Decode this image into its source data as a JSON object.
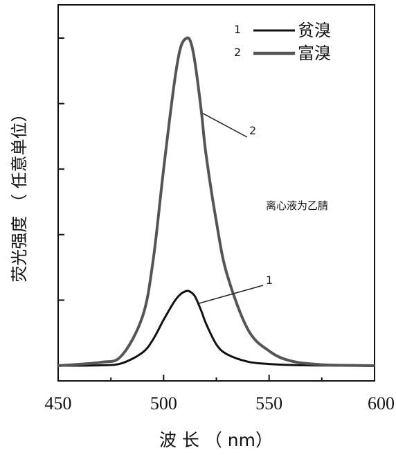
{
  "chart_data": {
    "type": "line",
    "xlabel": "波 长  （ nm）",
    "ylabel": "荧光强度 （ 任意单位）",
    "xlim": [
      450,
      600
    ],
    "ylim": [
      0,
      100
    ],
    "x_ticks": [
      "450",
      "500",
      "550",
      "600"
    ],
    "y_ticks_count": 5,
    "legend_position": "top-right",
    "note": "离心液为乙腈",
    "series": [
      {
        "id": "1",
        "name": "贫溴",
        "color": "#111111",
        "peak_label": "1",
        "x": [
          450,
          470,
          480,
          490,
          495,
          500,
          505,
          508,
          511,
          513,
          515,
          518,
          520,
          525,
          530,
          540,
          550,
          560,
          575,
          600
        ],
        "y": [
          0,
          0.1,
          0.7,
          4,
          8,
          14,
          19.5,
          21.8,
          22.8,
          22.4,
          21,
          16.5,
          13,
          6.5,
          3.5,
          1.2,
          0.5,
          0.2,
          0.05,
          0
        ]
      },
      {
        "id": "2",
        "name": "富溴",
        "color": "#555555",
        "peak_label": "2",
        "x": [
          450,
          470,
          480,
          490,
          495,
          500,
          505,
          508,
          511,
          513,
          515,
          518,
          520,
          525,
          530,
          540,
          550,
          560,
          575,
          600
        ],
        "y": [
          0,
          1,
          3,
          15,
          32,
          60,
          86,
          97,
          100,
          98.5,
          92,
          77,
          65,
          44,
          28,
          11,
          4.5,
          1.5,
          0.3,
          0
        ]
      }
    ]
  }
}
